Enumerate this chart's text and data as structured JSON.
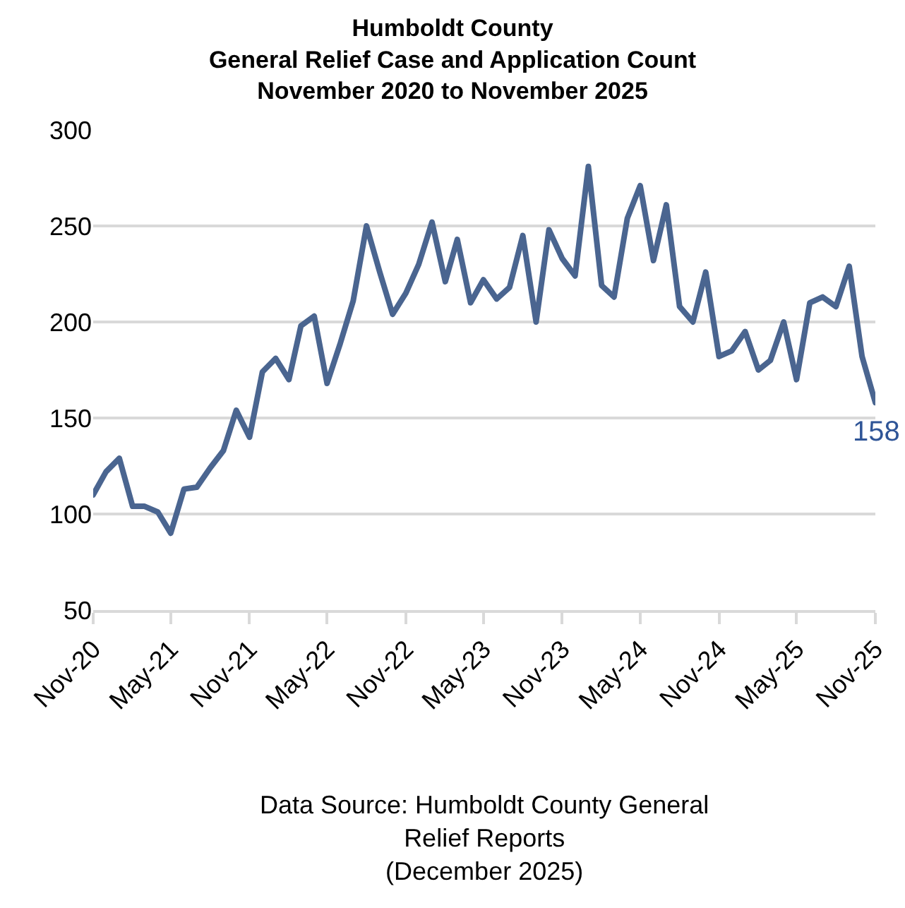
{
  "chart_data": {
    "type": "line",
    "title": "Humboldt County\nGeneral Relief Case and Application Count\nNovember 2020 to November 2025",
    "x": [
      "2020-11",
      "2020-12",
      "2021-01",
      "2021-02",
      "2021-03",
      "2021-04",
      "2021-05",
      "2021-06",
      "2021-07",
      "2021-08",
      "2021-09",
      "2021-10",
      "2021-11",
      "2021-12",
      "2022-01",
      "2022-02",
      "2022-03",
      "2022-04",
      "2022-05",
      "2022-06",
      "2022-07",
      "2022-08",
      "2022-09",
      "2022-10",
      "2022-11",
      "2022-12",
      "2023-01",
      "2023-02",
      "2023-03",
      "2023-04",
      "2023-05",
      "2023-06",
      "2023-07",
      "2023-08",
      "2023-09",
      "2023-10",
      "2023-11",
      "2023-12",
      "2024-01",
      "2024-02",
      "2024-03",
      "2024-04",
      "2024-05",
      "2024-06",
      "2024-07",
      "2024-08",
      "2024-09",
      "2024-10",
      "2024-11",
      "2024-12",
      "2025-01",
      "2025-02",
      "2025-03",
      "2025-04",
      "2025-05",
      "2025-06",
      "2025-07",
      "2025-08",
      "2025-09",
      "2025-10",
      "2025-11"
    ],
    "series": [
      {
        "color": "#4a6590",
        "values": [
          110,
          122,
          129,
          104,
          104,
          101,
          90,
          113,
          114,
          124,
          133,
          154,
          140,
          174,
          181,
          170,
          198,
          203,
          168,
          189,
          211,
          250,
          226,
          204,
          215,
          230,
          252,
          221,
          243,
          210,
          222,
          212,
          218,
          245,
          200,
          248,
          233,
          224,
          281,
          219,
          213,
          254,
          271,
          232,
          261,
          208,
          200,
          226,
          182,
          185,
          195,
          175,
          180,
          200,
          170,
          210,
          213,
          208,
          229,
          182,
          158
        ]
      }
    ],
    "xlim": [
      "2020-11",
      "2025-11"
    ],
    "xticks": [
      {
        "value": "2020-11",
        "label": "Nov-20"
      },
      {
        "value": "2021-05",
        "label": "May-21"
      },
      {
        "value": "2021-11",
        "label": "Nov-21"
      },
      {
        "value": "2022-05",
        "label": "May-22"
      },
      {
        "value": "2022-11",
        "label": "Nov-22"
      },
      {
        "value": "2023-05",
        "label": "May-23"
      },
      {
        "value": "2023-11",
        "label": "Nov-23"
      },
      {
        "value": "2024-05",
        "label": "May-24"
      },
      {
        "value": "2024-11",
        "label": "Nov-24"
      },
      {
        "value": "2025-05",
        "label": "May-25"
      },
      {
        "value": "2025-11",
        "label": "Nov-25"
      }
    ],
    "ylim": [
      50,
      300
    ],
    "yticks": [
      50,
      100,
      150,
      200,
      250,
      300
    ],
    "grid": "y",
    "marker": "none",
    "line_style": "solid",
    "annotations": [
      {
        "text": "158",
        "x": "2025-11",
        "y": 158
      },
      "Data Source: Humboldt County General\nRelief Reports\n(December 2025)"
    ]
  }
}
